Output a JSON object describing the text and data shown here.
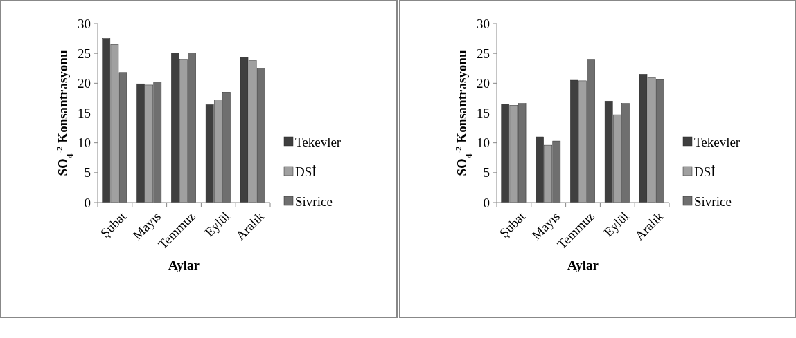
{
  "chart_data": [
    {
      "type": "bar",
      "xlabel": "Aylar",
      "ylabel": "SO$_{4}$$^{-2}$ Konsantrasyonu",
      "categories": [
        "Şubat",
        "Mayıs",
        "Temmuz",
        "Eylül",
        "Aralık"
      ],
      "series": [
        {
          "name": "Tekevler",
          "color": "#3f3f3f",
          "values": [
            27.5,
            19.9,
            25.1,
            16.4,
            24.4
          ]
        },
        {
          "name": "DSİ",
          "color": "#a0a0a0",
          "values": [
            26.5,
            19.7,
            23.9,
            17.2,
            23.8
          ]
        },
        {
          "name": "Sivrice",
          "color": "#6f6f6f",
          "values": [
            21.8,
            20.1,
            25.1,
            18.5,
            22.5
          ]
        }
      ],
      "ylim": [
        0,
        30
      ],
      "yticks": [
        0,
        5,
        10,
        15,
        20,
        25,
        30
      ],
      "legend": "right",
      "grid": false
    },
    {
      "type": "bar",
      "xlabel": "Aylar",
      "ylabel": "SO$_{4}$$^{-2}$ Konsantrasyonu",
      "categories": [
        "Şubat",
        "Mayıs",
        "Temmuz",
        "Eylül",
        "Aralık"
      ],
      "series": [
        {
          "name": "Tekevler",
          "color": "#3f3f3f",
          "values": [
            16.5,
            11.0,
            20.5,
            17.0,
            21.5
          ]
        },
        {
          "name": "DSİ",
          "color": "#a0a0a0",
          "values": [
            16.3,
            9.6,
            20.4,
            14.7,
            20.9
          ]
        },
        {
          "name": "Sivrice",
          "color": "#6f6f6f",
          "values": [
            16.6,
            10.3,
            23.9,
            16.6,
            20.6
          ]
        }
      ],
      "ylim": [
        0,
        30
      ],
      "yticks": [
        0,
        5,
        10,
        15,
        20,
        25,
        30
      ],
      "legend": "right",
      "grid": false
    }
  ]
}
